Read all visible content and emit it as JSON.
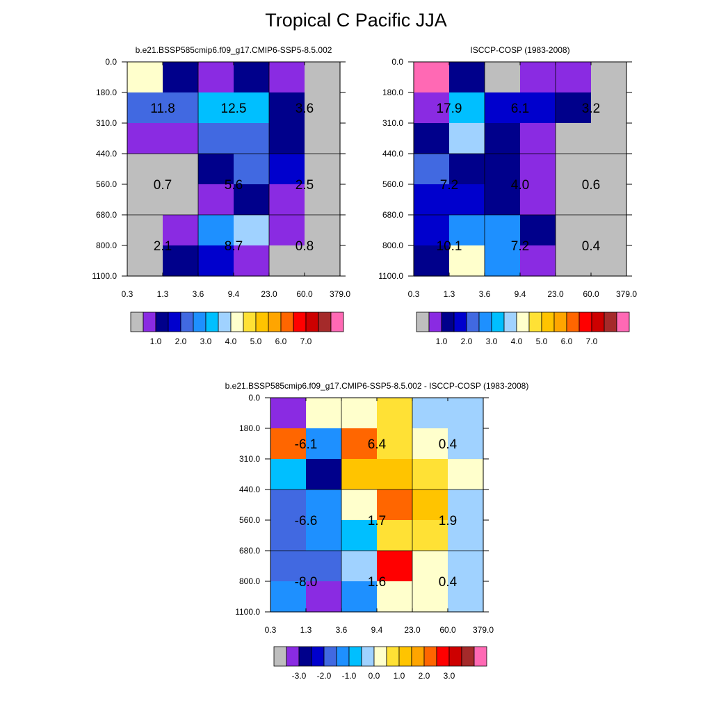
{
  "figure_title": "Tropical C Pacific JJA",
  "palette": [
    "#bebebe",
    "#8a2be2",
    "#00008b",
    "#0000cd",
    "#4169e1",
    "#1e90ff",
    "#00bfff",
    "#a0d2ff",
    "#ffffcc",
    "#ffe135",
    "#ffc400",
    "#ffa500",
    "#ff6600",
    "#ff0000",
    "#cd0000",
    "#a52a2a",
    "#ff69b4"
  ],
  "grid_color": "#000000",
  "chart_data": [
    {
      "type": "heatmap",
      "title": "b.e21.BSSP585cmip6.f09_g17.CMIP6-SSP5-8.5.002",
      "x_ticks": [
        "0.3",
        "1.3",
        "3.6",
        "9.4",
        "23.0",
        "60.0",
        "379.0"
      ],
      "y_ticks": [
        "0.0",
        "180.0",
        "310.0",
        "440.0",
        "560.0",
        "680.0",
        "800.0",
        "1100.0"
      ],
      "cells": [
        [
          8,
          2,
          1,
          2,
          1,
          0
        ],
        [
          4,
          4,
          6,
          6,
          2,
          0
        ],
        [
          1,
          1,
          4,
          4,
          2,
          0
        ],
        [
          0,
          0,
          2,
          4,
          3,
          0
        ],
        [
          0,
          0,
          1,
          2,
          1,
          0
        ],
        [
          0,
          1,
          5,
          7,
          1,
          0
        ],
        [
          0,
          2,
          3,
          1,
          0,
          0
        ]
      ],
      "box_values": [
        [
          "11.8",
          "12.5",
          "3.6"
        ],
        [
          "0.7",
          "5.6",
          "2.5"
        ],
        [
          "2.1",
          "8.7",
          "0.8"
        ]
      ],
      "colorbar_labels": [
        "1.0",
        "2.0",
        "3.0",
        "4.0",
        "5.0",
        "6.0",
        "7.0"
      ]
    },
    {
      "type": "heatmap",
      "title": "ISCCP-COSP (1983-2008)",
      "x_ticks": [
        "0.3",
        "1.3",
        "3.6",
        "9.4",
        "23.0",
        "60.0",
        "379.0"
      ],
      "y_ticks": [
        "0.0",
        "180.0",
        "310.0",
        "440.0",
        "560.0",
        "680.0",
        "800.0",
        "1100.0"
      ],
      "cells": [
        [
          16,
          2,
          0,
          1,
          1,
          0
        ],
        [
          1,
          6,
          3,
          3,
          2,
          0
        ],
        [
          2,
          7,
          2,
          1,
          0,
          0
        ],
        [
          4,
          2,
          2,
          1,
          0,
          0
        ],
        [
          3,
          3,
          2,
          1,
          0,
          0
        ],
        [
          3,
          5,
          5,
          2,
          0,
          0
        ],
        [
          2,
          8,
          5,
          1,
          0,
          0
        ]
      ],
      "box_values": [
        [
          "17.9",
          "6.1",
          "3.2"
        ],
        [
          "7.2",
          "4.0",
          "0.6"
        ],
        [
          "10.1",
          "7.2",
          "0.4"
        ]
      ],
      "colorbar_labels": [
        "1.0",
        "2.0",
        "3.0",
        "4.0",
        "5.0",
        "6.0",
        "7.0"
      ]
    },
    {
      "type": "heatmap",
      "title": "b.e21.BSSP585cmip6.f09_g17.CMIP6-SSP5-8.5.002 - ISCCP-COSP (1983-2008)",
      "x_ticks": [
        "0.3",
        "1.3",
        "3.6",
        "9.4",
        "23.0",
        "60.0",
        "379.0"
      ],
      "y_ticks": [
        "0.0",
        "180.0",
        "310.0",
        "440.0",
        "560.0",
        "680.0",
        "800.0",
        "1100.0"
      ],
      "cells": [
        [
          1,
          8,
          8,
          9,
          7,
          7
        ],
        [
          12,
          5,
          12,
          9,
          8,
          7
        ],
        [
          6,
          2,
          10,
          10,
          9,
          8
        ],
        [
          4,
          5,
          8,
          12,
          10,
          7
        ],
        [
          4,
          5,
          6,
          9,
          9,
          7
        ],
        [
          4,
          4,
          7,
          13,
          8,
          7
        ],
        [
          5,
          1,
          5,
          8,
          8,
          7
        ]
      ],
      "box_values": [
        [
          "-6.1",
          "6.4",
          "0.4"
        ],
        [
          "-6.6",
          "1.7",
          "1.9"
        ],
        [
          "-8.0",
          "1.6",
          "0.4"
        ]
      ],
      "colorbar_labels": [
        "-3.0",
        "-2.0",
        "-1.0",
        "0.0",
        "1.0",
        "2.0",
        "3.0"
      ]
    }
  ]
}
